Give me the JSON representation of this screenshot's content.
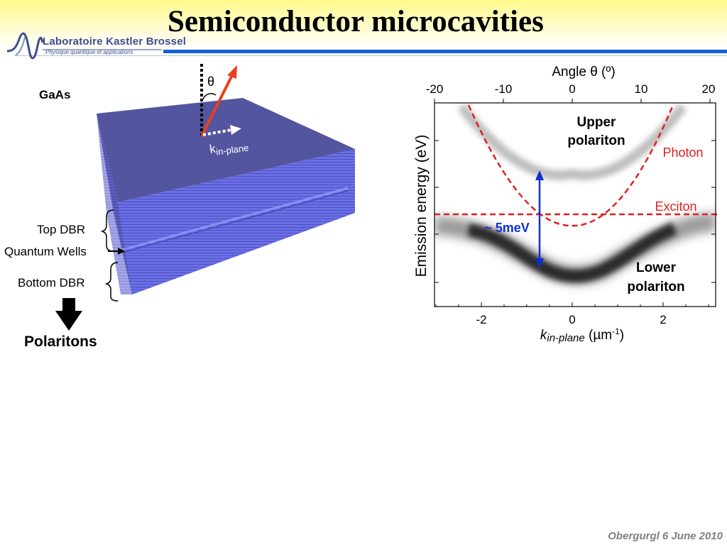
{
  "title": "Semiconductor microcavities",
  "logo": {
    "name_text": "Laboratoire Kastler Brossel",
    "tagline": "Physique quantique et applications",
    "icon": "lkb-wave-logo"
  },
  "diagram": {
    "material_label": "GaAs",
    "angle_symbol": "θ",
    "k_label_main": "k",
    "k_label_sub": "in-plane",
    "layers": {
      "top_dbr": "Top DBR",
      "quantum_wells": "Quantum Wells",
      "bottom_dbr": "Bottom DBR"
    },
    "result_label": "Polaritons",
    "colors": {
      "stack": "#5557a8",
      "stack_side": "#6a6ee0",
      "arrow": "#e8401c"
    }
  },
  "plot": {
    "top_axis_label": "Angle θ (º)",
    "top_ticks": [
      "-20",
      "-10",
      "0",
      "10",
      "20"
    ],
    "y_axis_label": "Emission energy (eV)",
    "bottom_ticks": [
      "-2",
      "0",
      "2"
    ],
    "x_label_main": "k",
    "x_label_sub": "in-plane",
    "x_label_unit_pre": " (µm",
    "x_label_unit_sup": "-1",
    "x_label_unit_post": ")",
    "labels": {
      "upper_1": "Upper",
      "upper_2": "polariton",
      "lower_1": "Lower",
      "lower_2": "polariton",
      "photon": "Photon",
      "exciton": "Exciton",
      "splitting": "~ 5meV"
    },
    "colors": {
      "dashed": "#e02020",
      "splitting_arrow": "#1030d0",
      "splitting_text": "#1030d0"
    }
  },
  "footer": "Obergurgl 6 June 2010"
}
